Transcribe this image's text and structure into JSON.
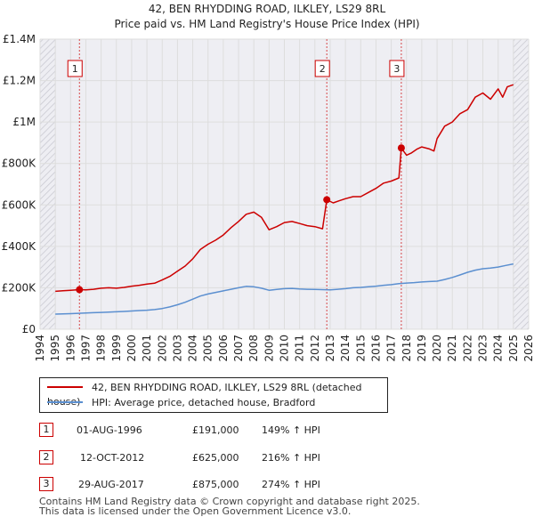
{
  "chart_data": {
    "type": "line",
    "title": "42, BEN RHYDDING ROAD, ILKLEY, LS29 8RL",
    "subtitle": "Price paid vs. HM Land Registry's House Price Index (HPI)",
    "xlim": [
      1994,
      2026
    ],
    "ylim": [
      0,
      1400000
    ],
    "x_ticks": [
      "1994",
      "1995",
      "1996",
      "1997",
      "1998",
      "1999",
      "2000",
      "2001",
      "2002",
      "2003",
      "2004",
      "2005",
      "2006",
      "2007",
      "2008",
      "2009",
      "2010",
      "2011",
      "2012",
      "2013",
      "2014",
      "2015",
      "2016",
      "2017",
      "2018",
      "2019",
      "2020",
      "2021",
      "2022",
      "2023",
      "2024",
      "2025",
      "2026"
    ],
    "y_ticks": [
      {
        "value": 0,
        "label": "£0"
      },
      {
        "value": 200000,
        "label": "£200K"
      },
      {
        "value": 400000,
        "label": "£400K"
      },
      {
        "value": 600000,
        "label": "£600K"
      },
      {
        "value": 800000,
        "label": "£800K"
      },
      {
        "value": 1000000,
        "label": "£1M"
      },
      {
        "value": 1200000,
        "label": "£1.2M"
      },
      {
        "value": 1400000,
        "label": "£1.4M"
      }
    ],
    "series": [
      {
        "name": "42, BEN RHYDDING ROAD, ILKLEY, LS29 8RL (detached house)",
        "color": "#cc0000",
        "points": [
          [
            1995.0,
            183000
          ],
          [
            1995.5,
            186000
          ],
          [
            1996.0,
            188000
          ],
          [
            1996.58,
            191000
          ],
          [
            1997.0,
            190000
          ],
          [
            1997.5,
            193000
          ],
          [
            1998.0,
            198000
          ],
          [
            1998.5,
            200000
          ],
          [
            1999.0,
            198000
          ],
          [
            1999.5,
            202000
          ],
          [
            2000.0,
            208000
          ],
          [
            2000.5,
            212000
          ],
          [
            2001.0,
            218000
          ],
          [
            2001.5,
            222000
          ],
          [
            2002.0,
            238000
          ],
          [
            2002.5,
            255000
          ],
          [
            2003.0,
            280000
          ],
          [
            2003.5,
            305000
          ],
          [
            2004.0,
            340000
          ],
          [
            2004.5,
            385000
          ],
          [
            2005.0,
            410000
          ],
          [
            2005.5,
            430000
          ],
          [
            2006.0,
            455000
          ],
          [
            2006.5,
            490000
          ],
          [
            2007.0,
            520000
          ],
          [
            2007.5,
            555000
          ],
          [
            2008.0,
            565000
          ],
          [
            2008.5,
            540000
          ],
          [
            2009.0,
            480000
          ],
          [
            2009.5,
            495000
          ],
          [
            2010.0,
            515000
          ],
          [
            2010.5,
            520000
          ],
          [
            2011.0,
            510000
          ],
          [
            2011.5,
            500000
          ],
          [
            2012.0,
            495000
          ],
          [
            2012.5,
            485000
          ],
          [
            2012.78,
            625000
          ],
          [
            2013.2,
            610000
          ],
          [
            2013.6,
            620000
          ],
          [
            2014.0,
            630000
          ],
          [
            2014.5,
            640000
          ],
          [
            2015.0,
            640000
          ],
          [
            2015.5,
            660000
          ],
          [
            2016.0,
            680000
          ],
          [
            2016.5,
            705000
          ],
          [
            2017.0,
            715000
          ],
          [
            2017.5,
            730000
          ],
          [
            2017.66,
            875000
          ],
          [
            2018.0,
            840000
          ],
          [
            2018.3,
            850000
          ],
          [
            2018.7,
            870000
          ],
          [
            2019.0,
            880000
          ],
          [
            2019.5,
            870000
          ],
          [
            2019.8,
            860000
          ],
          [
            2020.0,
            920000
          ],
          [
            2020.5,
            980000
          ],
          [
            2021.0,
            1000000
          ],
          [
            2021.5,
            1040000
          ],
          [
            2022.0,
            1060000
          ],
          [
            2022.5,
            1120000
          ],
          [
            2023.0,
            1140000
          ],
          [
            2023.5,
            1110000
          ],
          [
            2024.0,
            1160000
          ],
          [
            2024.3,
            1120000
          ],
          [
            2024.6,
            1170000
          ],
          [
            2025.0,
            1180000
          ]
        ]
      },
      {
        "name": "HPI: Average price, detached house, Bradford",
        "color": "#5b8fd0",
        "points": [
          [
            1995.0,
            73000
          ],
          [
            1995.5,
            74000
          ],
          [
            1996.0,
            75000
          ],
          [
            1996.5,
            77000
          ],
          [
            1997.0,
            78000
          ],
          [
            1997.5,
            80000
          ],
          [
            1998.0,
            81000
          ],
          [
            1998.5,
            83000
          ],
          [
            1999.0,
            84000
          ],
          [
            1999.5,
            86000
          ],
          [
            2000.0,
            88000
          ],
          [
            2000.5,
            90000
          ],
          [
            2001.0,
            92000
          ],
          [
            2001.5,
            95000
          ],
          [
            2002.0,
            100000
          ],
          [
            2002.5,
            108000
          ],
          [
            2003.0,
            118000
          ],
          [
            2003.5,
            130000
          ],
          [
            2004.0,
            145000
          ],
          [
            2004.5,
            160000
          ],
          [
            2005.0,
            170000
          ],
          [
            2005.5,
            178000
          ],
          [
            2006.0,
            185000
          ],
          [
            2006.5,
            193000
          ],
          [
            2007.0,
            200000
          ],
          [
            2007.5,
            207000
          ],
          [
            2008.0,
            205000
          ],
          [
            2008.5,
            198000
          ],
          [
            2009.0,
            188000
          ],
          [
            2009.5,
            192000
          ],
          [
            2010.0,
            196000
          ],
          [
            2010.5,
            197000
          ],
          [
            2011.0,
            194000
          ],
          [
            2011.5,
            193000
          ],
          [
            2012.0,
            192000
          ],
          [
            2012.5,
            191000
          ],
          [
            2013.0,
            190000
          ],
          [
            2013.5,
            193000
          ],
          [
            2014.0,
            196000
          ],
          [
            2014.5,
            200000
          ],
          [
            2015.0,
            202000
          ],
          [
            2015.5,
            205000
          ],
          [
            2016.0,
            208000
          ],
          [
            2016.5,
            212000
          ],
          [
            2017.0,
            215000
          ],
          [
            2017.5,
            220000
          ],
          [
            2018.0,
            223000
          ],
          [
            2018.5,
            225000
          ],
          [
            2019.0,
            228000
          ],
          [
            2019.5,
            230000
          ],
          [
            2020.0,
            232000
          ],
          [
            2020.5,
            240000
          ],
          [
            2021.0,
            250000
          ],
          [
            2021.5,
            262000
          ],
          [
            2022.0,
            275000
          ],
          [
            2022.5,
            285000
          ],
          [
            2023.0,
            292000
          ],
          [
            2023.5,
            295000
          ],
          [
            2024.0,
            300000
          ],
          [
            2024.5,
            308000
          ],
          [
            2025.0,
            315000
          ]
        ]
      }
    ],
    "sales": [
      {
        "label": "1",
        "date": "01-AUG-1996",
        "x": 1996.58,
        "price": 191000,
        "price_text": "£191,000",
        "hpi_text": "149% ↑ HPI"
      },
      {
        "label": "2",
        "date": "12-OCT-2012",
        "x": 2012.78,
        "price": 625000,
        "price_text": "£625,000",
        "hpi_text": "216% ↑ HPI"
      },
      {
        "label": "3",
        "date": "29-AUG-2017",
        "x": 2017.66,
        "price": 875000,
        "price_text": "£875,000",
        "hpi_text": "274% ↑ HPI"
      }
    ],
    "legend": {
      "property_label": "42, BEN RHYDDING ROAD, ILKLEY, LS29 8RL (detached house)",
      "hpi_label": "HPI: Average price, detached house, Bradford"
    }
  },
  "footer": {
    "line1": "Contains HM Land Registry data © Crown copyright and database right 2025.",
    "line2": "This data is licensed under the Open Government Licence v3.0."
  },
  "colors": {
    "property": "#cc0000",
    "hpi": "#5b8fd0",
    "grid": "#dddddd",
    "background": "#eeeef3",
    "hatch": "#c8c8d0"
  }
}
